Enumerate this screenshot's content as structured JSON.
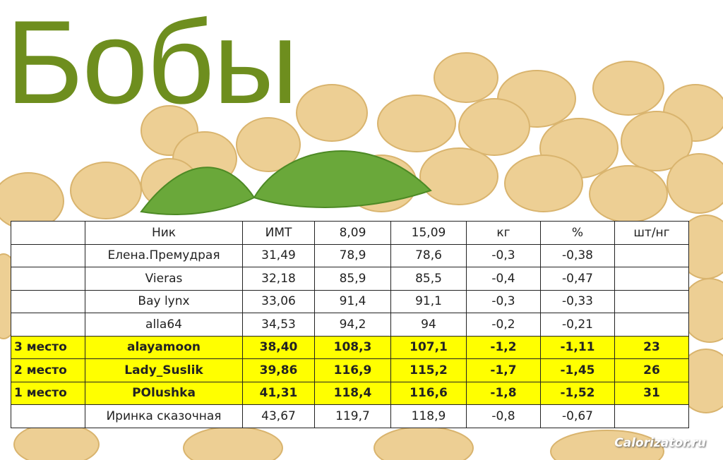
{
  "title": "Бобы",
  "table": {
    "header": [
      "Ник",
      "ИМТ",
      "8,09",
      "15,09",
      "кг",
      "%",
      "шт/нг"
    ],
    "rows": [
      {
        "cells": [
          "Елена.Премудрая",
          "31,49",
          "78,9",
          "78,6",
          "-0,3",
          "-0,38"
        ]
      },
      {
        "cells": [
          "Vieras",
          "32,18",
          "85,9",
          "85,5",
          "-0,4",
          "-0,47"
        ]
      },
      {
        "cells": [
          "Bay lynx",
          "33,06",
          "91,4",
          "91,1",
          "-0,3",
          "-0,33"
        ]
      },
      {
        "cells": [
          "alla64",
          "34,53",
          "94,2",
          "94",
          "-0,2",
          "-0,21"
        ]
      },
      {
        "place": "3 место",
        "cells": [
          "alayamoon",
          "38,40",
          "108,3",
          "107,1",
          "-1,2",
          "-1,11"
        ],
        "count": "23"
      },
      {
        "place": "2 место",
        "cells": [
          "Lady_Suslik",
          "39,86",
          "116,9",
          "115,2",
          "-1,7",
          "-1,45"
        ],
        "count": "26"
      },
      {
        "place": "1 место",
        "cells": [
          "POlushka",
          "41,31",
          "118,4",
          "116,6",
          "-1,8",
          "-1,52"
        ],
        "count": "31"
      },
      {
        "cells": [
          "Иринка сказочная",
          "43,67",
          "119,7",
          "118,9",
          "-0,8",
          "-0,67"
        ]
      }
    ]
  },
  "watermark": "Calorizator.ru"
}
